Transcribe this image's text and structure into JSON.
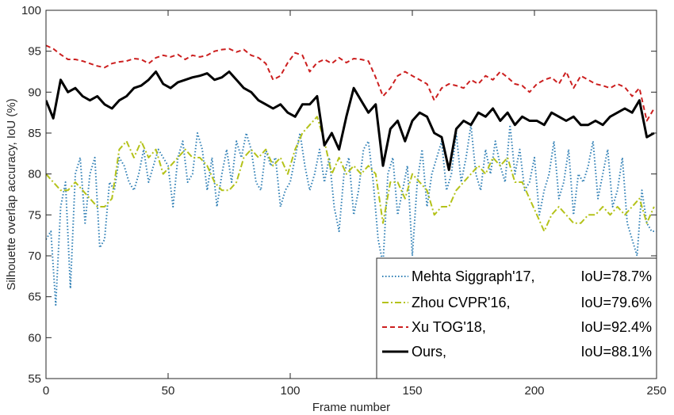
{
  "chart_data": {
    "type": "line",
    "xlabel": "Frame number",
    "ylabel": "Silhouette overlap accuracy, IoU (%)",
    "xlim": [
      0,
      250
    ],
    "ylim": [
      55,
      100
    ],
    "xticks": [
      "0",
      "50",
      "100",
      "150",
      "200",
      "250"
    ],
    "yticks": [
      "55",
      "60",
      "65",
      "70",
      "75",
      "80",
      "85",
      "90",
      "95",
      "100"
    ],
    "grid": false,
    "legend_position": "bottom-right",
    "series": [
      {
        "name": "Mehta Siggraph'17, IoU=78.7%",
        "legend_name": "Mehta Siggraph'17,",
        "legend_iou": "IoU=78.7%",
        "color": "#2F7FB5",
        "style": "dotted",
        "x": [
          0,
          2,
          4,
          6,
          8,
          10,
          12,
          14,
          16,
          18,
          20,
          22,
          24,
          26,
          28,
          30,
          32,
          34,
          36,
          38,
          40,
          42,
          44,
          46,
          48,
          50,
          52,
          54,
          56,
          58,
          60,
          62,
          64,
          66,
          68,
          70,
          72,
          74,
          76,
          78,
          80,
          82,
          84,
          86,
          88,
          90,
          92,
          94,
          96,
          98,
          100,
          102,
          104,
          106,
          108,
          110,
          112,
          114,
          116,
          118,
          120,
          122,
          124,
          126,
          128,
          130,
          132,
          134,
          136,
          138,
          140,
          142,
          144,
          146,
          148,
          150,
          152,
          154,
          156,
          158,
          160,
          162,
          164,
          166,
          168,
          170,
          172,
          174,
          176,
          178,
          180,
          182,
          184,
          186,
          188,
          190,
          192,
          194,
          196,
          198,
          200,
          202,
          204,
          206,
          208,
          210,
          212,
          214,
          216,
          218,
          220,
          222,
          224,
          226,
          228,
          230,
          232,
          234,
          236,
          238,
          240,
          242,
          244,
          246,
          248,
          250
        ],
        "values": [
          72,
          73,
          64,
          76,
          79,
          66,
          80,
          82,
          74,
          80,
          82,
          71,
          72,
          79,
          78,
          82,
          81,
          79,
          78,
          80,
          83,
          79,
          81,
          83,
          82,
          81,
          76,
          82,
          84,
          79,
          80,
          85,
          83,
          78,
          82,
          76,
          80,
          83,
          79,
          84,
          82,
          85,
          83,
          79,
          78,
          83,
          81,
          82,
          76,
          78,
          79,
          82,
          85,
          81,
          78,
          80,
          83,
          79,
          82,
          76,
          73,
          80,
          82,
          75,
          78,
          83,
          84,
          79,
          72,
          69,
          80,
          82,
          75,
          78,
          81,
          70,
          79,
          83,
          76,
          80,
          82,
          84,
          78,
          80,
          85,
          79,
          82,
          86,
          80,
          78,
          83,
          80,
          84,
          81,
          79,
          86,
          80,
          83,
          78,
          79,
          82,
          75,
          78,
          80,
          84,
          77,
          79,
          83,
          75,
          80,
          79,
          81,
          84,
          77,
          80,
          83,
          76,
          78,
          82,
          74,
          72,
          70,
          78,
          74,
          73,
          73
        ],
        "values_note": "values approximated from plot"
      },
      {
        "name": "Zhou CVPR'16, IoU=79.6%",
        "legend_name": "Zhou CVPR'16,",
        "legend_iou": "IoU=79.6%",
        "color": "#B4C21A",
        "style": "dashdot",
        "x": [
          0,
          3,
          6,
          9,
          12,
          15,
          18,
          21,
          24,
          27,
          30,
          33,
          36,
          39,
          42,
          45,
          48,
          51,
          54,
          57,
          60,
          63,
          66,
          69,
          72,
          75,
          78,
          81,
          84,
          87,
          90,
          93,
          96,
          99,
          102,
          105,
          108,
          111,
          114,
          117,
          120,
          123,
          126,
          129,
          132,
          135,
          138,
          141,
          144,
          147,
          150,
          153,
          156,
          159,
          162,
          165,
          168,
          171,
          174,
          177,
          180,
          183,
          186,
          189,
          192,
          195,
          198,
          201,
          204,
          207,
          210,
          213,
          216,
          219,
          222,
          225,
          228,
          231,
          234,
          237,
          240,
          243,
          246,
          249
        ],
        "values": [
          80,
          79,
          78,
          78,
          79,
          78,
          77,
          76,
          76,
          77,
          83,
          84,
          82,
          84,
          82,
          83,
          80,
          81,
          82,
          83,
          82,
          82,
          81,
          79,
          78,
          78,
          79,
          82,
          83,
          82,
          83,
          81,
          82,
          80,
          83,
          85,
          86,
          87,
          84,
          80,
          82,
          80,
          81,
          80,
          81,
          80,
          74,
          79,
          79,
          77,
          80,
          79,
          78,
          75,
          76,
          76,
          78,
          79,
          80,
          81,
          80,
          82,
          81,
          82,
          79,
          79,
          77,
          75,
          73,
          75,
          76,
          75,
          74,
          74,
          75,
          75,
          76,
          75,
          76,
          75,
          76,
          77,
          74,
          76
        ]
      },
      {
        "name": "Xu TOG'18, IoU=92.4%",
        "legend_name": "Xu TOG'18,",
        "legend_iou": "IoU=92.4%",
        "color": "#CC1F1F",
        "style": "dashed",
        "x": [
          0,
          3,
          6,
          9,
          12,
          15,
          18,
          21,
          24,
          27,
          30,
          33,
          36,
          39,
          42,
          45,
          48,
          51,
          54,
          57,
          60,
          63,
          66,
          69,
          72,
          75,
          78,
          81,
          84,
          87,
          90,
          93,
          96,
          99,
          102,
          105,
          108,
          111,
          114,
          117,
          120,
          123,
          126,
          129,
          132,
          135,
          138,
          141,
          144,
          147,
          150,
          153,
          156,
          159,
          162,
          165,
          168,
          171,
          174,
          177,
          180,
          183,
          186,
          189,
          192,
          195,
          198,
          201,
          204,
          207,
          210,
          213,
          216,
          219,
          222,
          225,
          228,
          231,
          234,
          237,
          240,
          243,
          246,
          249
        ],
        "values": [
          95.7,
          95.3,
          94.6,
          94.0,
          94.0,
          93.8,
          93.5,
          93.2,
          93.0,
          93.5,
          93.7,
          93.8,
          94.1,
          94.0,
          93.5,
          94.2,
          94.5,
          94.3,
          94.6,
          94.0,
          94.5,
          94.3,
          94.5,
          95.0,
          95.2,
          95.3,
          94.9,
          95.2,
          94.5,
          94.2,
          93.5,
          91.5,
          92.0,
          93.6,
          94.8,
          94.5,
          92.5,
          93.6,
          94.0,
          93.5,
          94.2,
          93.6,
          94.1,
          94.0,
          93.8,
          91.8,
          89.5,
          90.5,
          92.0,
          92.5,
          92.0,
          91.5,
          91.0,
          89.0,
          90.5,
          91.0,
          90.8,
          90.5,
          91.5,
          91.0,
          92.0,
          91.5,
          92.5,
          91.8,
          91.0,
          90.8,
          90.0,
          91.0,
          91.5,
          91.8,
          91.0,
          92.5,
          90.5,
          92.0,
          91.5,
          91.0,
          90.8,
          90.5,
          91.0,
          90.6,
          89.5,
          90.5,
          86.5,
          88.0
        ]
      },
      {
        "name": "Ours, IoU=88.1%",
        "legend_name": "Ours,",
        "legend_iou": "IoU=88.1%",
        "color": "#000000",
        "style": "solid",
        "x": [
          0,
          3,
          6,
          9,
          12,
          15,
          18,
          21,
          24,
          27,
          30,
          33,
          36,
          39,
          42,
          45,
          48,
          51,
          54,
          57,
          60,
          63,
          66,
          69,
          72,
          75,
          78,
          81,
          84,
          87,
          90,
          93,
          96,
          99,
          102,
          105,
          108,
          111,
          114,
          117,
          120,
          123,
          126,
          129,
          132,
          135,
          138,
          141,
          144,
          147,
          150,
          153,
          156,
          159,
          162,
          165,
          168,
          171,
          174,
          177,
          180,
          183,
          186,
          189,
          192,
          195,
          198,
          201,
          204,
          207,
          210,
          213,
          216,
          219,
          222,
          225,
          228,
          231,
          234,
          237,
          240,
          243,
          246,
          249
        ],
        "values": [
          89.0,
          86.8,
          91.5,
          90.0,
          90.5,
          89.5,
          89.0,
          89.5,
          88.5,
          88.0,
          89.0,
          89.5,
          90.5,
          90.8,
          91.5,
          92.5,
          91.0,
          90.5,
          91.2,
          91.5,
          91.8,
          92.0,
          92.3,
          91.5,
          91.8,
          92.5,
          91.5,
          90.5,
          90.0,
          89.0,
          88.5,
          88.0,
          88.5,
          87.5,
          87.0,
          88.5,
          88.5,
          89.5,
          83.5,
          85.0,
          83.0,
          87.0,
          90.5,
          89.0,
          87.5,
          88.5,
          81.0,
          85.5,
          86.5,
          84.0,
          86.5,
          87.5,
          87.0,
          85.0,
          84.5,
          80.5,
          85.5,
          86.5,
          86.0,
          87.5,
          87.0,
          88.0,
          86.5,
          87.5,
          86.0,
          87.0,
          86.5,
          86.5,
          86.0,
          87.5,
          87.0,
          86.5,
          87.0,
          86.0,
          86.0,
          86.5,
          86.0,
          87.0,
          87.5,
          88.0,
          87.5,
          89.0,
          84.5,
          85.0
        ]
      }
    ]
  }
}
